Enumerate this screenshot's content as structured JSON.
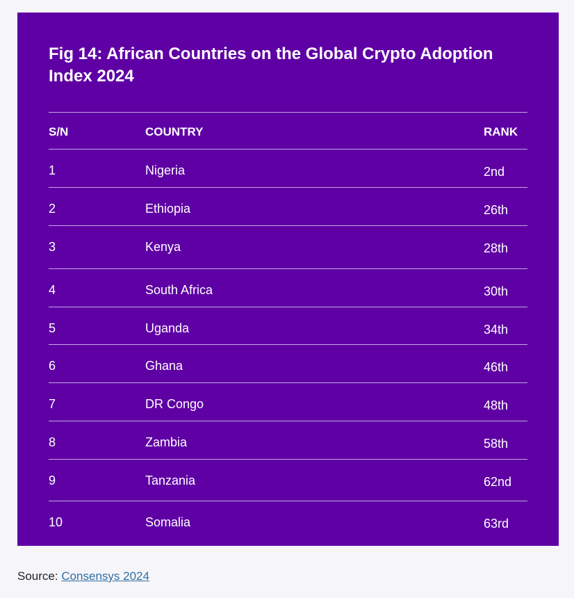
{
  "figure": {
    "title": "Fig 14: African Countries on the Global Crypto Adoption Index 2024",
    "columns": {
      "sn": "S/N",
      "country": "COUNTRY",
      "rank": "RANK"
    },
    "rows": [
      {
        "sn": "1",
        "country": "Nigeria",
        "rank": "2nd"
      },
      {
        "sn": "2",
        "country": "Ethiopia",
        "rank": "26th"
      },
      {
        "sn": "3",
        "country": "Kenya",
        "rank": "28th"
      },
      {
        "sn": "4",
        "country": "South Africa",
        "rank": "30th"
      },
      {
        "sn": "5",
        "country": "Uganda",
        "rank": "34th"
      },
      {
        "sn": "6",
        "country": "Ghana",
        "rank": "46th"
      },
      {
        "sn": "7",
        "country": "DR Congo",
        "rank": "48th"
      },
      {
        "sn": "8",
        "country": "Zambia",
        "rank": "58th"
      },
      {
        "sn": "9",
        "country": "Tanzania",
        "rank": "62nd"
      },
      {
        "sn": "10",
        "country": "Somalia",
        "rank": "63rd"
      }
    ]
  },
  "source": {
    "label": "Source: ",
    "link_text": "Consensys 2024"
  },
  "colors": {
    "panel_background": "#5f00a5",
    "page_background": "#f6f5fa",
    "link": "#2f6fa3"
  }
}
